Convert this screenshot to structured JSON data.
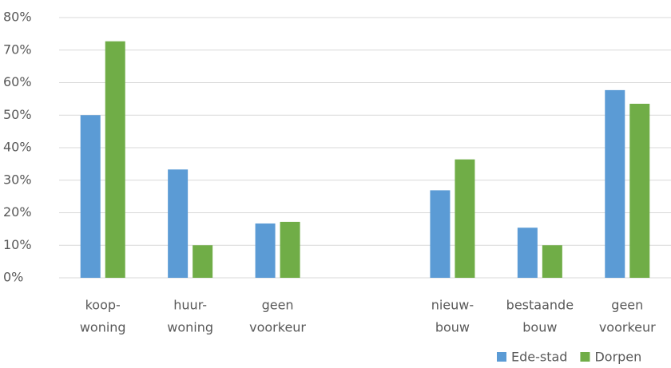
{
  "chart_data": {
    "type": "bar",
    "categories": [
      [
        "koop-",
        "woning"
      ],
      [
        "huur-",
        "woning"
      ],
      [
        "geen",
        "voorkeur"
      ],
      null,
      [
        "nieuw-",
        "bouw"
      ],
      [
        "bestaande",
        "bouw"
      ],
      [
        "geen",
        "voorkeur"
      ]
    ],
    "series": [
      {
        "name": "Ede-stad",
        "color": "#5b9bd5",
        "values": [
          50,
          33.3,
          16.7,
          null,
          26.9,
          15.4,
          57.7
        ]
      },
      {
        "name": "Dorpen",
        "color": "#70ad47",
        "values": [
          72.7,
          10,
          17.2,
          null,
          36.4,
          10,
          53.5
        ]
      }
    ],
    "ylim": [
      0,
      80
    ],
    "yticks": [
      {
        "value": 0,
        "label": "0%"
      },
      {
        "value": 10,
        "label": "10%"
      },
      {
        "value": 20,
        "label": "20%"
      },
      {
        "value": 30,
        "label": "30%"
      },
      {
        "value": 40,
        "label": "40%"
      },
      {
        "value": 50,
        "label": "50%"
      },
      {
        "value": 60,
        "label": "60%"
      },
      {
        "value": 70,
        "label": "70%"
      },
      {
        "value": 80,
        "label": "80%"
      }
    ],
    "grid": true,
    "legend": "bottom-right"
  }
}
